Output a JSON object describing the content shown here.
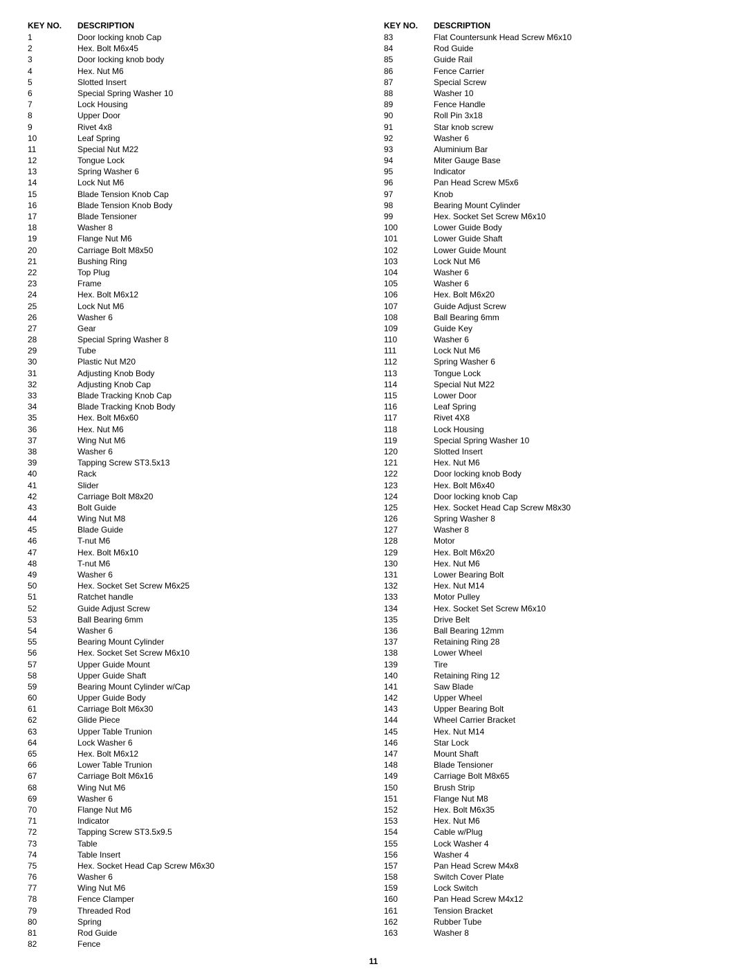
{
  "headers": {
    "keyno": "KEY NO.",
    "desc": "DESCRIPTION"
  },
  "page_number": "11",
  "left": [
    {
      "k": "1",
      "d": "Door locking knob Cap"
    },
    {
      "k": "2",
      "d": "Hex. Bolt M6x45"
    },
    {
      "k": "3",
      "d": "Door locking knob body"
    },
    {
      "k": "4",
      "d": "Hex. Nut M6"
    },
    {
      "k": "5",
      "d": "Slotted Insert"
    },
    {
      "k": "6",
      "d": "Special Spring Washer 10"
    },
    {
      "k": "7",
      "d": "Lock Housing"
    },
    {
      "k": "8",
      "d": "Upper Door"
    },
    {
      "k": "9",
      "d": "Rivet 4x8"
    },
    {
      "k": "10",
      "d": "Leaf Spring"
    },
    {
      "k": "11",
      "d": "Special Nut M22"
    },
    {
      "k": "12",
      "d": "Tongue Lock"
    },
    {
      "k": "13",
      "d": "Spring Washer 6"
    },
    {
      "k": "14",
      "d": "Lock Nut M6"
    },
    {
      "k": "15",
      "d": "Blade Tension Knob Cap"
    },
    {
      "k": "16",
      "d": "Blade Tension Knob Body"
    },
    {
      "k": "17",
      "d": "Blade Tensioner"
    },
    {
      "k": "18",
      "d": "Washer 8"
    },
    {
      "k": "19",
      "d": "Flange Nut M6"
    },
    {
      "k": "20",
      "d": "Carriage Bolt M8x50"
    },
    {
      "k": "21",
      "d": "Bushing Ring"
    },
    {
      "k": "22",
      "d": "Top Plug"
    },
    {
      "k": "23",
      "d": "Frame"
    },
    {
      "k": "24",
      "d": "Hex. Bolt M6x12"
    },
    {
      "k": "25",
      "d": "Lock Nut M6"
    },
    {
      "k": "26",
      "d": "Washer 6"
    },
    {
      "k": "27",
      "d": "Gear"
    },
    {
      "k": "28",
      "d": "Special Spring Washer 8"
    },
    {
      "k": "29",
      "d": "Tube"
    },
    {
      "k": "30",
      "d": "Plastic Nut M20"
    },
    {
      "k": "31",
      "d": "Adjusting Knob Body"
    },
    {
      "k": "32",
      "d": "Adjusting Knob Cap"
    },
    {
      "k": "33",
      "d": "Blade Tracking Knob Cap"
    },
    {
      "k": "34",
      "d": "Blade Tracking Knob Body"
    },
    {
      "k": "35",
      "d": "Hex. Bolt M6x60"
    },
    {
      "k": "36",
      "d": "Hex. Nut M6"
    },
    {
      "k": "37",
      "d": "Wing Nut M6"
    },
    {
      "k": "38",
      "d": "Washer 6"
    },
    {
      "k": "39",
      "d": "Tapping Screw ST3.5x13"
    },
    {
      "k": "40",
      "d": "Rack"
    },
    {
      "k": "41",
      "d": "Slider"
    },
    {
      "k": "42",
      "d": "Carriage Bolt M8x20"
    },
    {
      "k": "43",
      "d": "Bolt Guide"
    },
    {
      "k": "44",
      "d": "Wing Nut M8"
    },
    {
      "k": "45",
      "d": "Blade Guide"
    },
    {
      "k": "46",
      "d": "T-nut M6"
    },
    {
      "k": "47",
      "d": "Hex. Bolt M6x10"
    },
    {
      "k": "48",
      "d": "T-nut M6"
    },
    {
      "k": "49",
      "d": "Washer 6"
    },
    {
      "k": "50",
      "d": "Hex. Socket Set Screw M6x25"
    },
    {
      "k": "51",
      "d": "Ratchet handle"
    },
    {
      "k": "52",
      "d": "Guide Adjust Screw"
    },
    {
      "k": "53",
      "d": "Ball Bearing 6mm"
    },
    {
      "k": "54",
      "d": "Washer 6"
    },
    {
      "k": "55",
      "d": "Bearing Mount Cylinder"
    },
    {
      "k": "56",
      "d": "Hex. Socket Set Screw M6x10"
    },
    {
      "k": "57",
      "d": "Upper Guide Mount"
    },
    {
      "k": "58",
      "d": "Upper Guide Shaft"
    },
    {
      "k": "59",
      "d": "Bearing Mount Cylinder w/Cap"
    },
    {
      "k": "60",
      "d": "Upper Guide Body"
    },
    {
      "k": "61",
      "d": "Carriage Bolt M6x30"
    },
    {
      "k": "62",
      "d": "Glide Piece"
    },
    {
      "k": "63",
      "d": "Upper Table Trunion"
    },
    {
      "k": "64",
      "d": "Lock Washer 6"
    },
    {
      "k": "65",
      "d": "Hex. Bolt M6x12"
    },
    {
      "k": "66",
      "d": "Lower Table Trunion"
    },
    {
      "k": "67",
      "d": "Carriage Bolt M6x16"
    },
    {
      "k": "68",
      "d": "Wing Nut M6"
    },
    {
      "k": "69",
      "d": "Washer 6"
    },
    {
      "k": "70",
      "d": "Flange Nut M6"
    },
    {
      "k": "71",
      "d": "Indicator"
    },
    {
      "k": "72",
      "d": "Tapping Screw ST3.5x9.5"
    },
    {
      "k": "73",
      "d": "Table"
    },
    {
      "k": "74",
      "d": "Table Insert"
    },
    {
      "k": "75",
      "d": "Hex. Socket Head Cap Screw M6x30"
    },
    {
      "k": "76",
      "d": "Washer 6"
    },
    {
      "k": "77",
      "d": "Wing Nut M6"
    },
    {
      "k": "78",
      "d": "Fence Clamper"
    },
    {
      "k": "79",
      "d": "Threaded Rod"
    },
    {
      "k": "80",
      "d": "Spring"
    },
    {
      "k": "81",
      "d": "Rod Guide"
    },
    {
      "k": "82",
      "d": "Fence"
    }
  ],
  "right": [
    {
      "k": "83",
      "d": "Flat Countersunk Head Screw M6x10"
    },
    {
      "k": "84",
      "d": "Rod Guide"
    },
    {
      "k": "85",
      "d": "Guide Rail"
    },
    {
      "k": "86",
      "d": "Fence Carrier"
    },
    {
      "k": "87",
      "d": "Special Screw"
    },
    {
      "k": "88",
      "d": "Washer 10"
    },
    {
      "k": "89",
      "d": "Fence Handle"
    },
    {
      "k": "90",
      "d": "Roll Pin 3x18"
    },
    {
      "k": "91",
      "d": "Star knob screw"
    },
    {
      "k": "92",
      "d": "Washer 6"
    },
    {
      "k": "93",
      "d": "Aluminium Bar"
    },
    {
      "k": "94",
      "d": "Miter Gauge Base"
    },
    {
      "k": "95",
      "d": "Indicator"
    },
    {
      "k": "96",
      "d": "Pan Head Screw M5x6"
    },
    {
      "k": "97",
      "d": "Knob"
    },
    {
      "k": "98",
      "d": "Bearing Mount Cylinder"
    },
    {
      "k": "99",
      "d": "Hex. Socket Set Screw M6x10"
    },
    {
      "k": "100",
      "d": "Lower Guide Body"
    },
    {
      "k": "101",
      "d": "Lower Guide Shaft"
    },
    {
      "k": "102",
      "d": "Lower Guide Mount"
    },
    {
      "k": "103",
      "d": "Lock Nut M6"
    },
    {
      "k": "104",
      "d": "Washer 6"
    },
    {
      "k": "105",
      "d": "Washer 6"
    },
    {
      "k": "106",
      "d": "Hex. Bolt M6x20"
    },
    {
      "k": "107",
      "d": "Guide Adjust Screw"
    },
    {
      "k": "108",
      "d": "Ball Bearing 6mm"
    },
    {
      "k": "109",
      "d": "Guide Key"
    },
    {
      "k": "110",
      "d": "Washer 6"
    },
    {
      "k": "111",
      "d": "Lock Nut M6"
    },
    {
      "k": "112",
      "d": "Spring Washer 6"
    },
    {
      "k": "113",
      "d": "Tongue Lock"
    },
    {
      "k": "114",
      "d": "Special Nut M22"
    },
    {
      "k": "115",
      "d": "Lower Door"
    },
    {
      "k": "116",
      "d": "Leaf Spring"
    },
    {
      "k": "117",
      "d": "Rivet 4X8"
    },
    {
      "k": "118",
      "d": "Lock Housing"
    },
    {
      "k": "119",
      "d": "Special Spring Washer 10"
    },
    {
      "k": "120",
      "d": "Slotted Insert"
    },
    {
      "k": "121",
      "d": "Hex. Nut M6"
    },
    {
      "k": "122",
      "d": "Door locking knob Body"
    },
    {
      "k": "123",
      "d": "Hex. Bolt M6x40"
    },
    {
      "k": "124",
      "d": "Door locking knob Cap"
    },
    {
      "k": "125",
      "d": "Hex. Socket Head Cap Screw M8x30"
    },
    {
      "k": "126",
      "d": "Spring Washer 8"
    },
    {
      "k": "127",
      "d": "Washer 8"
    },
    {
      "k": "128",
      "d": "Motor"
    },
    {
      "k": "129",
      "d": "Hex. Bolt M6x20"
    },
    {
      "k": "130",
      "d": "Hex. Nut M6"
    },
    {
      "k": "131",
      "d": "Lower Bearing Bolt"
    },
    {
      "k": "132",
      "d": "Hex. Nut M14"
    },
    {
      "k": "133",
      "d": "Motor Pulley"
    },
    {
      "k": "134",
      "d": "Hex. Socket Set Screw M6x10"
    },
    {
      "k": "135",
      "d": "Drive Belt"
    },
    {
      "k": "136",
      "d": "Ball Bearing 12mm"
    },
    {
      "k": "137",
      "d": "Retaining Ring 28"
    },
    {
      "k": "138",
      "d": "Lower Wheel"
    },
    {
      "k": "139",
      "d": "Tire"
    },
    {
      "k": "140",
      "d": "Retaining Ring 12"
    },
    {
      "k": "141",
      "d": "Saw Blade"
    },
    {
      "k": "142",
      "d": "Upper Wheel"
    },
    {
      "k": "143",
      "d": "Upper Bearing Bolt"
    },
    {
      "k": "144",
      "d": "Wheel Carrier Bracket"
    },
    {
      "k": "145",
      "d": "Hex. Nut M14"
    },
    {
      "k": "146",
      "d": "Star Lock"
    },
    {
      "k": "147",
      "d": "Mount Shaft"
    },
    {
      "k": "148",
      "d": "Blade Tensioner"
    },
    {
      "k": "149",
      "d": "Carriage Bolt M8x65"
    },
    {
      "k": "150",
      "d": "Brush Strip"
    },
    {
      "k": "151",
      "d": "Flange Nut M8"
    },
    {
      "k": "152",
      "d": "Hex. Bolt M6x35"
    },
    {
      "k": "153",
      "d": "Hex. Nut M6"
    },
    {
      "k": "154",
      "d": "Cable w/Plug"
    },
    {
      "k": "155",
      "d": "Lock Washer 4"
    },
    {
      "k": "156",
      "d": "Washer 4"
    },
    {
      "k": "157",
      "d": "Pan Head Screw M4x8"
    },
    {
      "k": "158",
      "d": "Switch Cover Plate"
    },
    {
      "k": "159",
      "d": "Lock Switch"
    },
    {
      "k": "160",
      "d": "Pan Head Screw M4x12"
    },
    {
      "k": "161",
      "d": "Tension Bracket"
    },
    {
      "k": "162",
      "d": "Rubber Tube"
    },
    {
      "k": "163",
      "d": "Washer 8"
    }
  ]
}
